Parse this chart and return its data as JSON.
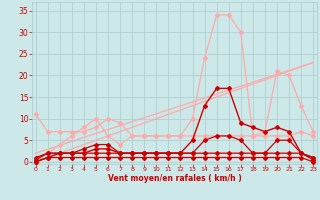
{
  "bg_color": "#cce8e8",
  "grid_color": "#aacccc",
  "text_color": "#cc0000",
  "xlabel": "Vent moyen/en rafales ( km/h )",
  "x_ticks": [
    0,
    1,
    2,
    3,
    4,
    5,
    6,
    7,
    8,
    9,
    10,
    11,
    12,
    13,
    14,
    15,
    16,
    17,
    18,
    19,
    20,
    21,
    22,
    23
  ],
  "y_ticks": [
    0,
    5,
    10,
    15,
    20,
    25,
    30,
    35
  ],
  "ylim": [
    -0.5,
    37
  ],
  "xlim": [
    -0.3,
    23.3
  ],
  "lines": [
    {
      "x": [
        0,
        1,
        2,
        3,
        4,
        5,
        6,
        7,
        8,
        9,
        10,
        11,
        12,
        13,
        14,
        15,
        16,
        17,
        18,
        19,
        20,
        21,
        22,
        23
      ],
      "y": [
        0,
        2,
        4,
        6,
        8,
        10,
        6,
        4,
        6,
        6,
        6,
        6,
        6,
        10,
        24,
        34,
        34,
        30,
        6,
        7,
        21,
        20,
        13,
        7
      ],
      "color": "#ffaaaa",
      "linewidth": 0.9,
      "marker": "D",
      "markersize": 2.0
    },
    {
      "x": [
        0,
        1,
        2,
        3,
        4,
        5,
        6,
        7,
        8,
        9,
        10,
        11,
        12,
        13,
        14,
        15,
        16,
        17,
        18,
        19,
        20,
        21,
        22,
        23
      ],
      "y": [
        11,
        7,
        7,
        7,
        7,
        8,
        10,
        9,
        6,
        6,
        6,
        6,
        6,
        6,
        6,
        6,
        6,
        6,
        6,
        6,
        6,
        6,
        7,
        6
      ],
      "color": "#ffaaaa",
      "linewidth": 0.9,
      "marker": "D",
      "markersize": 2.0
    },
    {
      "x": [
        0,
        23
      ],
      "y": [
        0,
        23
      ],
      "color": "#ffaaaa",
      "linewidth": 0.9,
      "marker": null,
      "markersize": 0
    },
    {
      "x": [
        0,
        23
      ],
      "y": [
        2,
        23
      ],
      "color": "#ffaaaa",
      "linewidth": 0.9,
      "marker": null,
      "markersize": 0
    },
    {
      "x": [
        0,
        1,
        2,
        3,
        4,
        5,
        6,
        7,
        8,
        9,
        10,
        11,
        12,
        13,
        14,
        15,
        16,
        17,
        18,
        19,
        20,
        21,
        22,
        23
      ],
      "y": [
        0,
        1,
        2,
        2,
        2,
        3,
        3,
        2,
        2,
        2,
        2,
        2,
        2,
        5,
        13,
        17,
        17,
        9,
        8,
        7,
        8,
        7,
        2,
        1
      ],
      "color": "#cc0000",
      "linewidth": 1.0,
      "marker": "D",
      "markersize": 2.0
    },
    {
      "x": [
        0,
        1,
        2,
        3,
        4,
        5,
        6,
        7,
        8,
        9,
        10,
        11,
        12,
        13,
        14,
        15,
        16,
        17,
        18,
        19,
        20,
        21,
        22,
        23
      ],
      "y": [
        1,
        2,
        2,
        2,
        3,
        4,
        4,
        2,
        2,
        2,
        2,
        2,
        2,
        2,
        5,
        6,
        6,
        5,
        2,
        2,
        5,
        5,
        2,
        1
      ],
      "color": "#cc0000",
      "linewidth": 0.9,
      "marker": "D",
      "markersize": 2.0
    },
    {
      "x": [
        0,
        1,
        2,
        3,
        4,
        5,
        6,
        7,
        8,
        9,
        10,
        11,
        12,
        13,
        14,
        15,
        16,
        17,
        18,
        19,
        20,
        21,
        22,
        23
      ],
      "y": [
        0.5,
        2,
        2,
        2,
        2,
        2,
        2,
        2,
        2,
        2,
        2,
        2,
        2,
        2,
        2,
        2,
        2,
        2,
        2,
        2,
        2,
        2,
        2,
        0.5
      ],
      "color": "#cc0000",
      "linewidth": 0.9,
      "marker": "D",
      "markersize": 2.0
    },
    {
      "x": [
        0,
        1,
        2,
        3,
        4,
        5,
        6,
        7,
        8,
        9,
        10,
        11,
        12,
        13,
        14,
        15,
        16,
        17,
        18,
        19,
        20,
        21,
        22,
        23
      ],
      "y": [
        0,
        1,
        1,
        1,
        1,
        1,
        1,
        1,
        1,
        1,
        1,
        1,
        1,
        1,
        1,
        1,
        1,
        1,
        1,
        1,
        1,
        1,
        1,
        0
      ],
      "color": "#cc0000",
      "linewidth": 0.9,
      "marker": "D",
      "markersize": 2.0
    }
  ]
}
